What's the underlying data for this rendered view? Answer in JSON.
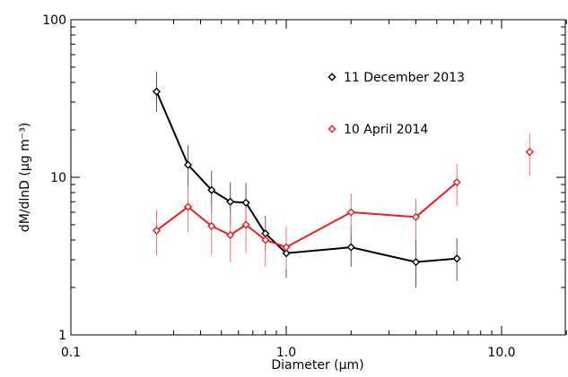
{
  "chart_data": {
    "type": "line",
    "title": "",
    "xlabel": "Diameter (μm)",
    "ylabel": "dM/dlnD (μg m⁻³)",
    "xscale": "log",
    "yscale": "log",
    "xlim": [
      0.1,
      20
    ],
    "ylim": [
      1,
      100
    ],
    "x_tick_labels": [
      "0.1",
      "1.0",
      "10.0"
    ],
    "y_tick_labels": [
      "1",
      "10",
      "100"
    ],
    "legend_position": "upper-center",
    "error_bars": true,
    "series": [
      {
        "name": "11 December 2013",
        "color": "#000000",
        "marker": "diamond-open",
        "x": [
          0.25,
          0.35,
          0.45,
          0.55,
          0.65,
          0.8,
          1.0,
          2.0,
          4.0,
          6.2
        ],
        "y": [
          35,
          12,
          8.3,
          7,
          6.9,
          4.4,
          3.3,
          3.6,
          2.9,
          3.05
        ],
        "y_low": [
          26,
          8.5,
          6,
          5,
          5,
          3.4,
          2.3,
          2.7,
          2.0,
          2.2
        ],
        "y_high": [
          47,
          16,
          11,
          9.3,
          9.2,
          5.7,
          4.4,
          4.9,
          4.0,
          4.1
        ]
      },
      {
        "name": "10 April 2014",
        "color": "#ee1c1c",
        "marker": "diamond-open",
        "x": [
          0.25,
          0.35,
          0.45,
          0.55,
          0.65,
          0.8,
          1.0,
          2.0,
          4.0,
          6.2,
          13.5
        ],
        "y": [
          4.6,
          6.5,
          4.9,
          4.3,
          5.0,
          4.0,
          3.6,
          6.0,
          5.6,
          9.3,
          14.5
        ],
        "y_low": [
          3.2,
          4.5,
          3.2,
          2.9,
          3.3,
          2.7,
          2.6,
          4.3,
          4.0,
          6.6,
          10.2
        ],
        "y_high": [
          6.2,
          8.9,
          6.8,
          6.0,
          6.9,
          5.4,
          4.9,
          7.9,
          7.3,
          12.2,
          19.0
        ],
        "connected_points": 10
      }
    ]
  }
}
